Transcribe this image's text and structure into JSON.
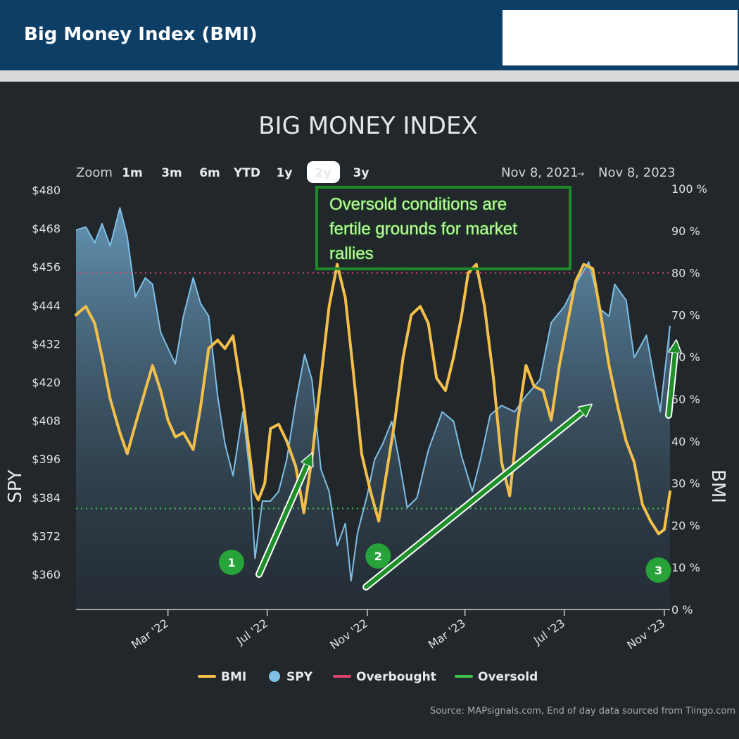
{
  "header": {
    "title": "Big Money Index (BMI)"
  },
  "chart_data": {
    "type": "line",
    "title": "BIG MONEY INDEX",
    "zoom": {
      "label": "Zoom",
      "options": [
        "1m",
        "3m",
        "6m",
        "YTD",
        "1y",
        "2y",
        "3y"
      ],
      "selected": "2y"
    },
    "range": {
      "from": "Nov 8, 2021",
      "arrow": "→",
      "to": "Nov 8, 2023"
    },
    "ylabel_left": "SPY",
    "ylabel_right": "BMI",
    "yleft_ticks": [
      "$480",
      "$468",
      "$456",
      "$444",
      "$432",
      "$420",
      "$408",
      "$396",
      "$384",
      "$372",
      "$360"
    ],
    "yleft_range": [
      348,
      480
    ],
    "yright_ticks": [
      "100 %",
      "90 %",
      "80 %",
      "70 %",
      "60 %",
      "50 %",
      "40 %",
      "30 %",
      "20 %",
      "10 %",
      "0 %"
    ],
    "yright_range": [
      0,
      100
    ],
    "x_ticks": [
      "Mar '22",
      "Jul '22",
      "Nov '22",
      "Mar '23",
      "Jul '23",
      "Nov '23"
    ],
    "x_tick_dates": [
      "2022-03-01",
      "2022-07-01",
      "2022-11-01",
      "2023-03-01",
      "2023-07-01",
      "2023-11-01"
    ],
    "x_range": [
      "2021-11-08",
      "2023-11-08"
    ],
    "thresholds": {
      "overbought": 80,
      "oversold": 24
    },
    "series": [
      {
        "name": "BMI",
        "color": "#f2c04a",
        "axis": "right",
        "points": [
          [
            "2021-11-08",
            70
          ],
          [
            "2021-11-20",
            72
          ],
          [
            "2021-12-01",
            68
          ],
          [
            "2021-12-10",
            60
          ],
          [
            "2021-12-20",
            50
          ],
          [
            "2022-01-01",
            42
          ],
          [
            "2022-01-10",
            37
          ],
          [
            "2022-01-20",
            44
          ],
          [
            "2022-02-01",
            52
          ],
          [
            "2022-02-10",
            58
          ],
          [
            "2022-02-20",
            52
          ],
          [
            "2022-03-01",
            45
          ],
          [
            "2022-03-10",
            41
          ],
          [
            "2022-03-20",
            42
          ],
          [
            "2022-04-01",
            38
          ],
          [
            "2022-04-10",
            48
          ],
          [
            "2022-04-20",
            62
          ],
          [
            "2022-05-01",
            64
          ],
          [
            "2022-05-10",
            62
          ],
          [
            "2022-05-20",
            65
          ],
          [
            "2022-06-01",
            50
          ],
          [
            "2022-06-10",
            36
          ],
          [
            "2022-06-15",
            28
          ],
          [
            "2022-06-20",
            26
          ],
          [
            "2022-06-28",
            30
          ],
          [
            "2022-07-05",
            43
          ],
          [
            "2022-07-15",
            44
          ],
          [
            "2022-07-25",
            40
          ],
          [
            "2022-08-05",
            34
          ],
          [
            "2022-08-15",
            23
          ],
          [
            "2022-08-25",
            36
          ],
          [
            "2022-09-05",
            55
          ],
          [
            "2022-09-15",
            72
          ],
          [
            "2022-09-25",
            82
          ],
          [
            "2022-10-05",
            74
          ],
          [
            "2022-10-15",
            56
          ],
          [
            "2022-10-25",
            37
          ],
          [
            "2022-11-05",
            28
          ],
          [
            "2022-11-15",
            21
          ],
          [
            "2022-11-25",
            33
          ],
          [
            "2022-12-05",
            45
          ],
          [
            "2022-12-15",
            60
          ],
          [
            "2022-12-25",
            70
          ],
          [
            "2023-01-05",
            72
          ],
          [
            "2023-01-15",
            68
          ],
          [
            "2023-01-25",
            55
          ],
          [
            "2023-02-05",
            52
          ],
          [
            "2023-02-15",
            60
          ],
          [
            "2023-02-25",
            70
          ],
          [
            "2023-03-05",
            80
          ],
          [
            "2023-03-15",
            82
          ],
          [
            "2023-03-25",
            72
          ],
          [
            "2023-04-05",
            55
          ],
          [
            "2023-04-15",
            35
          ],
          [
            "2023-04-25",
            27
          ],
          [
            "2023-05-05",
            45
          ],
          [
            "2023-05-15",
            58
          ],
          [
            "2023-05-25",
            53
          ],
          [
            "2023-06-05",
            52
          ],
          [
            "2023-06-15",
            45
          ],
          [
            "2023-06-25",
            58
          ],
          [
            "2023-07-05",
            68
          ],
          [
            "2023-07-15",
            78
          ],
          [
            "2023-07-25",
            82
          ],
          [
            "2023-08-05",
            81
          ],
          [
            "2023-08-15",
            70
          ],
          [
            "2023-08-25",
            58
          ],
          [
            "2023-09-05",
            48
          ],
          [
            "2023-09-15",
            40
          ],
          [
            "2023-09-25",
            35
          ],
          [
            "2023-10-05",
            25
          ],
          [
            "2023-10-15",
            21
          ],
          [
            "2023-10-25",
            18
          ],
          [
            "2023-11-01",
            19
          ],
          [
            "2023-11-08",
            28
          ]
        ]
      },
      {
        "name": "SPY",
        "color": "#7fbfe6",
        "axis": "left",
        "points": [
          [
            "2021-11-08",
            467
          ],
          [
            "2021-11-20",
            468
          ],
          [
            "2021-12-01",
            463
          ],
          [
            "2021-12-10",
            469
          ],
          [
            "2021-12-20",
            462
          ],
          [
            "2022-01-01",
            474
          ],
          [
            "2022-01-10",
            465
          ],
          [
            "2022-01-20",
            446
          ],
          [
            "2022-02-01",
            452
          ],
          [
            "2022-02-10",
            450
          ],
          [
            "2022-02-20",
            435
          ],
          [
            "2022-03-01",
            430
          ],
          [
            "2022-03-10",
            425
          ],
          [
            "2022-03-20",
            440
          ],
          [
            "2022-04-01",
            452
          ],
          [
            "2022-04-10",
            444
          ],
          [
            "2022-04-20",
            440
          ],
          [
            "2022-05-01",
            415
          ],
          [
            "2022-05-10",
            400
          ],
          [
            "2022-05-20",
            390
          ],
          [
            "2022-06-01",
            410
          ],
          [
            "2022-06-10",
            390
          ],
          [
            "2022-06-16",
            364
          ],
          [
            "2022-06-25",
            382
          ],
          [
            "2022-07-05",
            382
          ],
          [
            "2022-07-15",
            385
          ],
          [
            "2022-07-25",
            395
          ],
          [
            "2022-08-05",
            413
          ],
          [
            "2022-08-16",
            428
          ],
          [
            "2022-08-25",
            420
          ],
          [
            "2022-09-05",
            392
          ],
          [
            "2022-09-15",
            385
          ],
          [
            "2022-09-25",
            368
          ],
          [
            "2022-10-05",
            375
          ],
          [
            "2022-10-12",
            357
          ],
          [
            "2022-10-20",
            372
          ],
          [
            "2022-11-01",
            384
          ],
          [
            "2022-11-10",
            395
          ],
          [
            "2022-11-20",
            400
          ],
          [
            "2022-12-01",
            407
          ],
          [
            "2022-12-10",
            395
          ],
          [
            "2022-12-20",
            380
          ],
          [
            "2023-01-01",
            383
          ],
          [
            "2023-01-15",
            398
          ],
          [
            "2023-02-01",
            410
          ],
          [
            "2023-02-15",
            407
          ],
          [
            "2023-02-25",
            396
          ],
          [
            "2023-03-10",
            385
          ],
          [
            "2023-03-20",
            395
          ],
          [
            "2023-04-01",
            409
          ],
          [
            "2023-04-15",
            412
          ],
          [
            "2023-05-01",
            410
          ],
          [
            "2023-05-15",
            415
          ],
          [
            "2023-06-01",
            420
          ],
          [
            "2023-06-15",
            438
          ],
          [
            "2023-07-01",
            443
          ],
          [
            "2023-07-15",
            450
          ],
          [
            "2023-07-31",
            457
          ],
          [
            "2023-08-15",
            442
          ],
          [
            "2023-08-25",
            440
          ],
          [
            "2023-09-01",
            450
          ],
          [
            "2023-09-15",
            445
          ],
          [
            "2023-09-25",
            427
          ],
          [
            "2023-10-10",
            434
          ],
          [
            "2023-10-27",
            410
          ],
          [
            "2023-11-08",
            437
          ]
        ]
      }
    ],
    "legend": [
      {
        "label": "BMI",
        "color": "#f2c04a",
        "marker": "line"
      },
      {
        "label": "SPY",
        "color": "#7fbfe6",
        "marker": "dot"
      },
      {
        "label": "Overbought",
        "color": "#d6426b",
        "marker": "line"
      },
      {
        "label": "Oversold",
        "color": "#3fc04a",
        "marker": "line"
      }
    ],
    "legend_position": "bottom",
    "annotation": {
      "lines": [
        "Oversold conditions are",
        "fertile grounds for market",
        "rallies"
      ],
      "border_color": "#1f8a2a"
    },
    "markers": [
      {
        "label": "1",
        "date": "2022-06-20"
      },
      {
        "label": "2",
        "date": "2022-10-28"
      },
      {
        "label": "3",
        "date": "2023-11-05"
      }
    ],
    "source": "Source: MAPsignals.com, End of day data sourced from Tiingo.com"
  }
}
